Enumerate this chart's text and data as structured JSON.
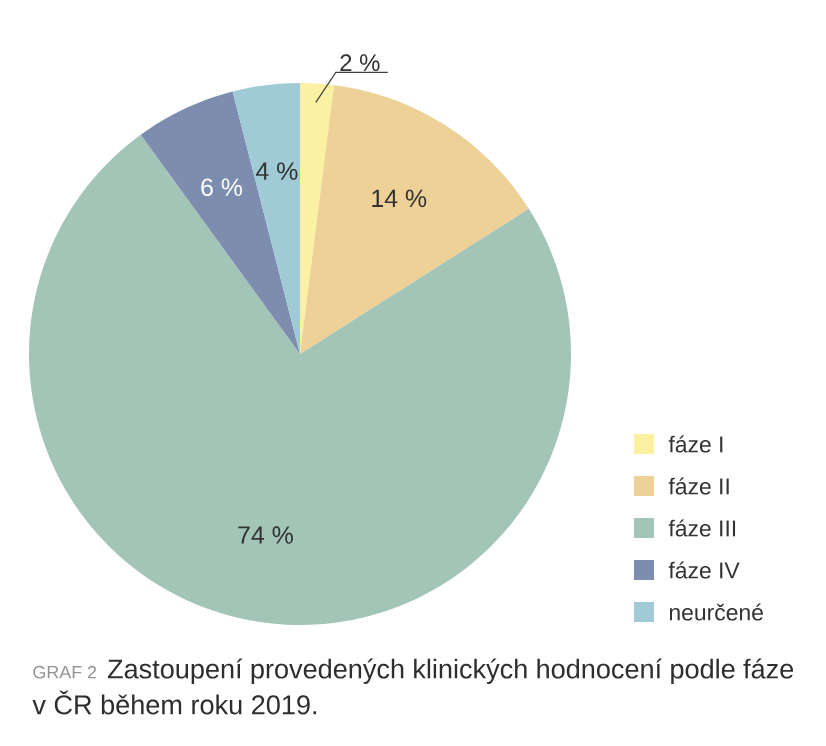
{
  "chart_data": {
    "type": "pie",
    "title": "GRAF 2",
    "subtitle": "Zastoupení provedených klinických hodnocení podle fáze v ČR během roku 2019.",
    "categories": [
      "fáze I",
      "fáze II",
      "fáze III",
      "fáze IV",
      "neurčené"
    ],
    "values": [
      2,
      14,
      74,
      6,
      4
    ],
    "value_labels": [
      "2 %",
      "14 %",
      "74 %",
      "6 %",
      "4 %"
    ],
    "colors": [
      "#fbf1a2",
      "#edd196",
      "#a3c5b7",
      "#7d8db0",
      "#a0cbd6"
    ],
    "legend": "bottom right"
  }
}
